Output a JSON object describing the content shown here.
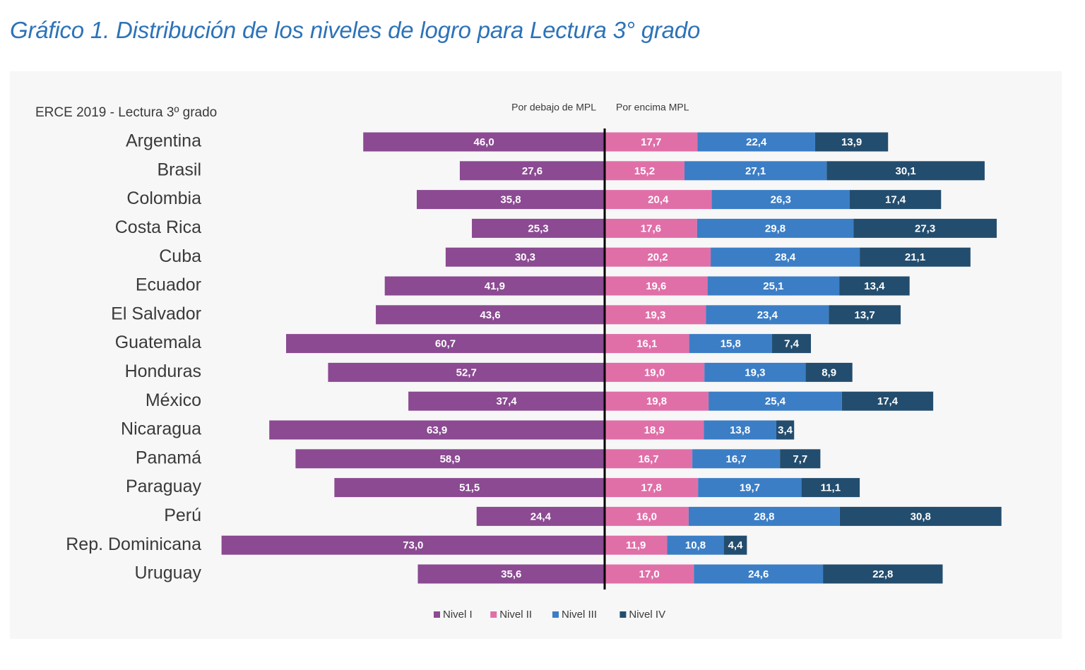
{
  "title": "Gráfico 1. Distribución de los niveles de logro para Lectura 3° grado",
  "chart_data": {
    "type": "bar",
    "orientation": "horizontal-diverging",
    "subtitle": "ERCE 2019  - Lectura 3º grado",
    "left_header": "Por debajo de MPL",
    "right_header": "Por encima MPL",
    "categories": [
      "Argentina",
      "Brasil",
      "Colombia",
      "Costa Rica",
      "Cuba",
      "Ecuador",
      "El Salvador",
      "Guatemala",
      "Honduras",
      "México",
      "Nicaragua",
      "Panamá",
      "Paraguay",
      "Perú",
      "Rep. Dominicana",
      "Uruguay"
    ],
    "series": [
      {
        "name": "Nivel I",
        "color": "#8b4a92",
        "side": "left",
        "values": [
          46.0,
          27.6,
          35.8,
          25.3,
          30.3,
          41.9,
          43.6,
          60.7,
          52.7,
          37.4,
          63.9,
          58.9,
          51.5,
          24.4,
          73.0,
          35.6
        ],
        "labels": [
          "46,0",
          "27,6",
          "35,8",
          "25,3",
          "30,3",
          "41,9",
          "43,6",
          "60,7",
          "52,7",
          "37,4",
          "63,9",
          "58,9",
          "51,5",
          "24,4",
          "73,0",
          "35,6"
        ]
      },
      {
        "name": "Nivel II",
        "color": "#e06fa8",
        "side": "right",
        "values": [
          17.7,
          15.2,
          20.4,
          17.6,
          20.2,
          19.6,
          19.3,
          16.1,
          19.0,
          19.8,
          18.9,
          16.7,
          17.8,
          16.0,
          11.9,
          17.0
        ],
        "labels": [
          "17,7",
          "15,2",
          "20,4",
          "17,6",
          "20,2",
          "19,6",
          "19,3",
          "16,1",
          "19,0",
          "19,8",
          "18,9",
          "16,7",
          "17,8",
          "16,0",
          "11,9",
          "17,0"
        ]
      },
      {
        "name": "Nivel III",
        "color": "#3b7ec6",
        "side": "right",
        "values": [
          22.4,
          27.1,
          26.3,
          29.8,
          28.4,
          25.1,
          23.4,
          15.8,
          19.3,
          25.4,
          13.8,
          16.7,
          19.7,
          28.8,
          10.8,
          24.6
        ],
        "labels": [
          "22,4",
          "27,1",
          "26,3",
          "29,8",
          "28,4",
          "25,1",
          "23,4",
          "15,8",
          "19,3",
          "25,4",
          "13,8",
          "16,7",
          "19,7",
          "28,8",
          "10,8",
          "24,6"
        ]
      },
      {
        "name": "Nivel IV",
        "color": "#234d6e",
        "side": "right",
        "values": [
          13.9,
          30.1,
          17.4,
          27.3,
          21.1,
          13.4,
          13.7,
          7.4,
          8.9,
          17.4,
          3.4,
          7.7,
          11.1,
          30.8,
          4.4,
          22.8
        ],
        "labels": [
          "13,9",
          "30,1",
          "17,4",
          "27,3",
          "21,1",
          "13,4",
          "13,7",
          "7,4",
          "8,9",
          "17,4",
          "3,4",
          "7,7",
          "11,1",
          "30,8",
          "4,4",
          "22,8"
        ]
      }
    ],
    "legend": [
      "Nivel I",
      "Nivel II",
      "Nivel III",
      "Nivel IV"
    ],
    "legend_position": "bottom-center",
    "grid": false
  }
}
